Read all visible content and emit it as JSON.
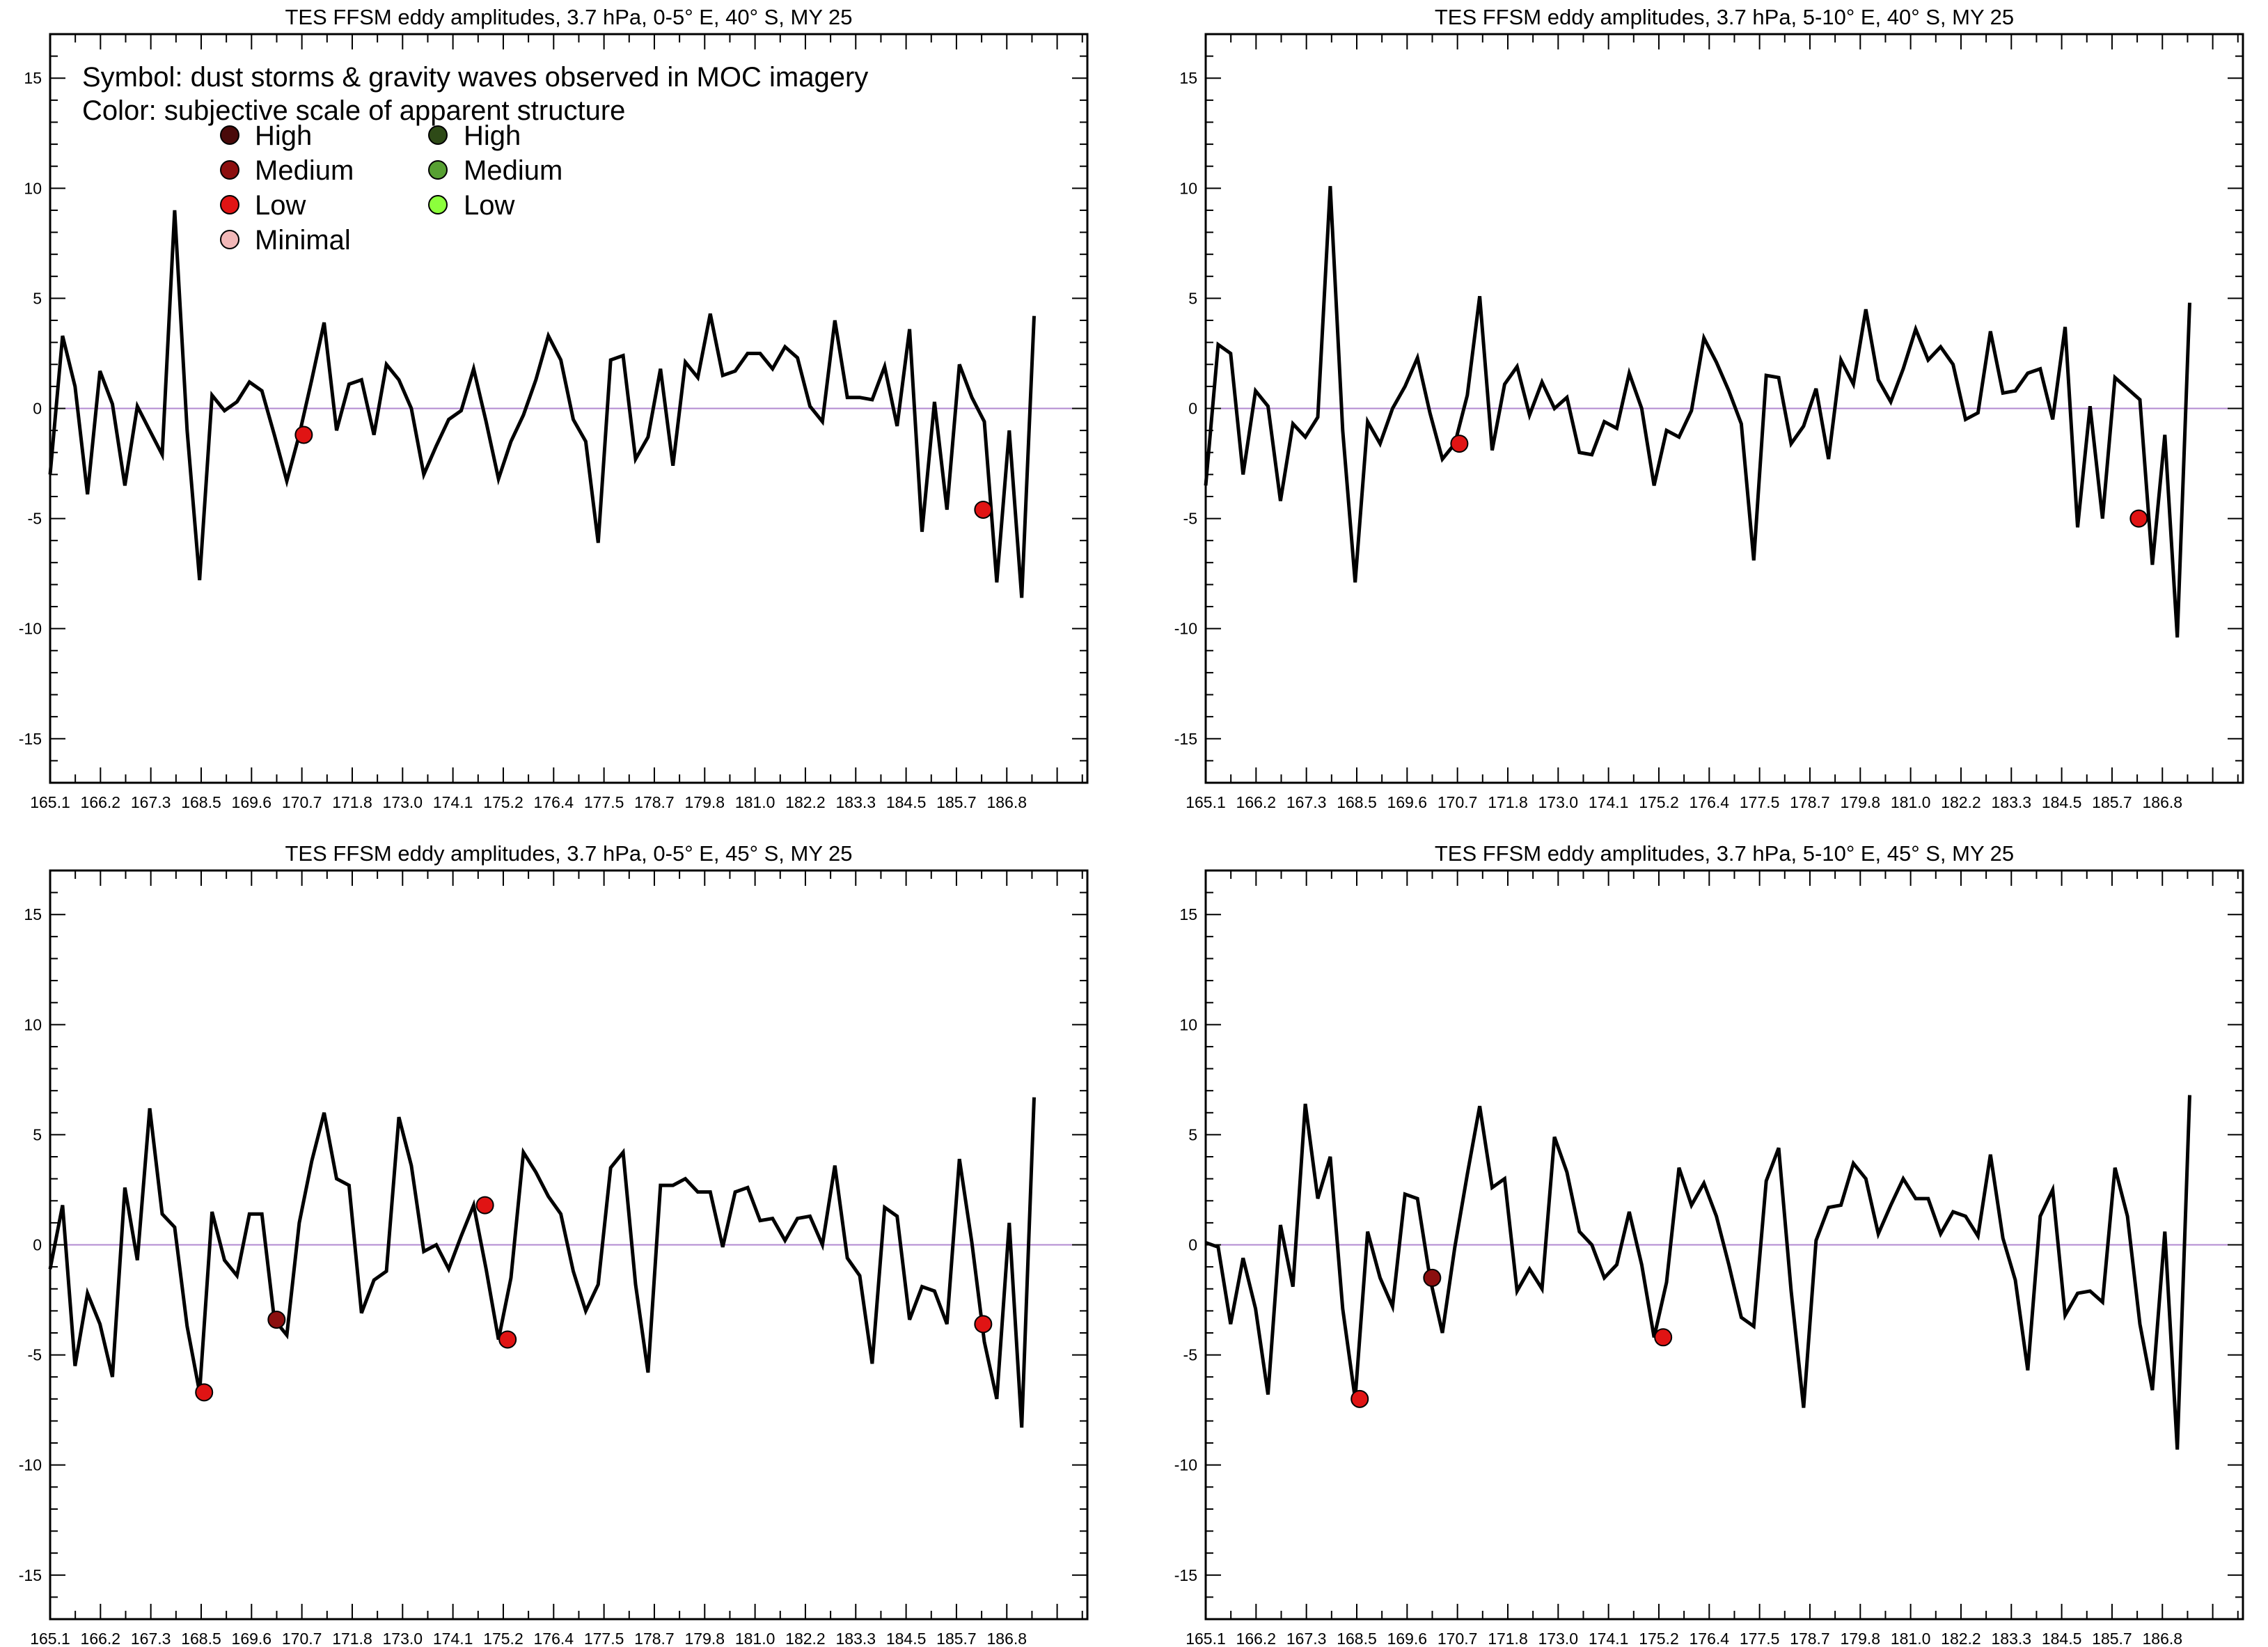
{
  "legend": {
    "line1": "Symbol: dust storms & gravity waves observed in MOC imagery",
    "line2": "Color: subjective scale of apparent structure",
    "dust_storms": [
      {
        "label": "High",
        "color": "#4a0a0a"
      },
      {
        "label": "Medium",
        "color": "#8c0f0f"
      },
      {
        "label": "Low",
        "color": "#e01414"
      },
      {
        "label": "Minimal",
        "color": "#f2b8b8"
      }
    ],
    "gravity_waves": [
      {
        "label": "High",
        "color": "#2e4a17"
      },
      {
        "label": "Medium",
        "color": "#57a032"
      },
      {
        "label": "Low",
        "color": "#8cff3c"
      }
    ]
  },
  "chart_data": [
    {
      "type": "line",
      "title": "TES FFSM eddy amplitudes, 3.7 hPa, 0-5° E, 40° S, MY 25",
      "xlim": [
        165.1,
        188.0
      ],
      "ylim": [
        -17,
        17
      ],
      "x_tick_labels": [
        "165.1",
        "166.2",
        "167.3",
        "168.5",
        "169.6",
        "170.7",
        "171.8",
        "173.0",
        "174.1",
        "175.2",
        "176.4",
        "177.5",
        "178.7",
        "179.8",
        "181.0",
        "182.2",
        "183.3",
        "184.5",
        "185.7",
        "186.8"
      ],
      "y_ticks": [
        -15,
        -10,
        -5,
        0,
        5,
        10,
        15
      ],
      "zero_line_color": "#b28ad0",
      "series": [
        {
          "x0": 165.1,
          "dx": 0.275,
          "values": [
            -3,
            3.3,
            1,
            -3.9,
            1.7,
            0.2,
            -3.5,
            0.1,
            -1,
            -2.1,
            9,
            -1,
            -7.8,
            0.6,
            -0.1,
            0.3,
            1.2,
            0.8,
            -1.2,
            -3.3,
            -1.2,
            1.3,
            3.9,
            -1,
            1.1,
            1.3,
            -1.2,
            2,
            1.3,
            0,
            -3,
            -1.7,
            -0.5,
            -0.1,
            1.8,
            -0.6,
            -3.2,
            -1.5,
            -0.3,
            1.3,
            3.3,
            2.2,
            -0.5,
            -1.5,
            -6.1,
            2.2,
            2.4,
            -2.3,
            -1.3,
            1.8,
            -2.6,
            2.1,
            1.4,
            4.3,
            1.5,
            1.7,
            2.5,
            2.5,
            1.8,
            2.8,
            2.3,
            0.1,
            -0.6,
            4,
            0.5,
            0.5,
            0.4,
            1.9,
            -0.8,
            3.6,
            -5.6,
            0.3,
            -4.6,
            2,
            0.5,
            -0.6,
            -7.9,
            -1,
            -8.6,
            4.2
          ]
        }
      ],
      "markers": [
        {
          "x": 170.7,
          "y": -1.2,
          "category": "Low"
        },
        {
          "x": 185.7,
          "y": -4.6,
          "category": "Low"
        }
      ]
    },
    {
      "type": "line",
      "title": "TES FFSM eddy amplitudes, 3.7 hPa, 5-10° E, 40° S, MY 25",
      "xlim": [
        165.1,
        188.0
      ],
      "ylim": [
        -17,
        17
      ],
      "x_tick_labels": [
        "165.1",
        "166.2",
        "167.3",
        "168.5",
        "169.6",
        "170.7",
        "171.8",
        "173.0",
        "174.1",
        "175.2",
        "176.4",
        "177.5",
        "178.7",
        "179.8",
        "181.0",
        "182.2",
        "183.3",
        "184.5",
        "185.7",
        "186.8"
      ],
      "y_ticks": [
        -15,
        -10,
        -5,
        0,
        5,
        10,
        15
      ],
      "zero_line_color": "#b28ad0",
      "series": [
        {
          "x0": 165.1,
          "dx": 0.275,
          "values": [
            -3.5,
            2.9,
            2.5,
            -3,
            0.8,
            0.1,
            -4.2,
            -0.7,
            -1.3,
            -0.4,
            10.1,
            -1,
            -7.9,
            -0.6,
            -1.6,
            0,
            1,
            2.3,
            -0.2,
            -2.3,
            -1.6,
            0.6,
            5.1,
            -1.9,
            1.1,
            1.9,
            -0.3,
            1.2,
            0,
            0.5,
            -2,
            -2.1,
            -0.6,
            -0.9,
            1.6,
            0,
            -3.5,
            -1,
            -1.3,
            -0.1,
            3.2,
            2.1,
            0.8,
            -0.7,
            -6.9,
            1.5,
            1.4,
            -1.6,
            -0.8,
            0.9,
            -2.3,
            2.2,
            1.1,
            4.5,
            1.3,
            0.3,
            1.8,
            3.6,
            2.2,
            2.8,
            2,
            -0.5,
            -0.2,
            3.5,
            0.7,
            0.8,
            1.6,
            1.8,
            -0.5,
            3.7,
            -5.4,
            0.1,
            -5,
            1.4,
            0.9,
            0.4,
            -7.1,
            -1.2,
            -10.4,
            4.8
          ]
        }
      ],
      "markers": [
        {
          "x": 170.7,
          "y": -1.6,
          "category": "Low"
        },
        {
          "x": 185.7,
          "y": -5,
          "category": "Low"
        }
      ]
    },
    {
      "type": "line",
      "title": "TES FFSM eddy amplitudes, 3.7 hPa, 0-5° E, 45° S, MY 25",
      "xlim": [
        165.1,
        188.0
      ],
      "ylim": [
        -17,
        17
      ],
      "x_tick_labels": [
        "165.1",
        "166.2",
        "167.3",
        "168.5",
        "169.6",
        "170.7",
        "171.8",
        "173.0",
        "174.1",
        "175.2",
        "176.4",
        "177.5",
        "178.7",
        "179.8",
        "181.0",
        "182.2",
        "183.3",
        "184.5",
        "185.7",
        "186.8"
      ],
      "y_ticks": [
        -15,
        -10,
        -5,
        0,
        5,
        10,
        15
      ],
      "zero_line_color": "#b28ad0",
      "series": [
        {
          "x0": 165.1,
          "dx": 0.275,
          "values": [
            -1.1,
            1.8,
            -5.5,
            -2.2,
            -3.6,
            -6,
            2.6,
            -0.7,
            6.2,
            1.4,
            0.8,
            -3.7,
            -6.7,
            1.5,
            -0.7,
            -1.4,
            1.4,
            1.4,
            -3.4,
            -4.1,
            1,
            3.8,
            6,
            3,
            2.7,
            -3.1,
            -1.6,
            -1.2,
            5.8,
            3.6,
            -0.3,
            0,
            -1.1,
            0.4,
            1.8,
            -1.1,
            -4.3,
            -1.5,
            4.2,
            3.3,
            2.2,
            1.4,
            -1.2,
            -3,
            -1.8,
            3.5,
            4.2,
            -1.8,
            -5.8,
            2.7,
            2.7,
            3,
            2.4,
            2.4,
            -0.1,
            2.4,
            2.6,
            1.1,
            1.2,
            0.2,
            1.2,
            1.3,
            0,
            3.6,
            -0.6,
            -1.4,
            -5.4,
            1.7,
            1.3,
            -3.4,
            -1.9,
            -2.1,
            -3.6,
            3.9,
            0.1,
            -4.4,
            -7,
            1,
            -8.3,
            6.7
          ]
        }
      ],
      "markers": [
        {
          "x": 168.5,
          "y": -6.7,
          "category": "Low"
        },
        {
          "x": 170.1,
          "y": -3.4,
          "category": "Medium"
        },
        {
          "x": 174.7,
          "y": 1.8,
          "category": "Low"
        },
        {
          "x": 175.2,
          "y": -4.3,
          "category": "Low"
        },
        {
          "x": 185.7,
          "y": -3.6,
          "category": "Low"
        }
      ]
    },
    {
      "type": "line",
      "title": "TES FFSM eddy amplitudes, 3.7 hPa, 5-10° E, 45° S, MY 25",
      "xlim": [
        165.1,
        188.0
      ],
      "ylim": [
        -17,
        17
      ],
      "x_tick_labels": [
        "165.1",
        "166.2",
        "167.3",
        "168.5",
        "169.6",
        "170.7",
        "171.8",
        "173.0",
        "174.1",
        "175.2",
        "176.4",
        "177.5",
        "178.7",
        "179.8",
        "181.0",
        "182.2",
        "183.3",
        "184.5",
        "185.7",
        "186.8"
      ],
      "y_ticks": [
        -15,
        -10,
        -5,
        0,
        5,
        10,
        15
      ],
      "zero_line_color": "#b28ad0",
      "series": [
        {
          "x0": 165.1,
          "dx": 0.275,
          "values": [
            0.1,
            -0.1,
            -3.6,
            -0.6,
            -2.9,
            -6.8,
            0.9,
            -1.9,
            6.4,
            2.1,
            4,
            -2.9,
            -7,
            0.6,
            -1.5,
            -2.8,
            2.3,
            2.1,
            -1.5,
            -4,
            -0.1,
            3.2,
            6.3,
            2.6,
            3,
            -2.1,
            -1.1,
            -2,
            4.9,
            3.3,
            0.6,
            0,
            -1.5,
            -0.9,
            1.5,
            -0.9,
            -4.2,
            -1.7,
            3.5,
            1.8,
            2.8,
            1.3,
            -0.9,
            -3.3,
            -3.7,
            2.9,
            4.4,
            -2.1,
            -7.4,
            0.2,
            1.7,
            1.8,
            3.7,
            3,
            0.5,
            1.8,
            3,
            2.1,
            2.1,
            0.5,
            1.5,
            1.3,
            0.4,
            4.1,
            0.3,
            -1.6,
            -5.7,
            1.3,
            2.5,
            -3.2,
            -2.2,
            -2.1,
            -2.6,
            3.5,
            1.3,
            -3.6,
            -6.6,
            0.6,
            -9.3,
            6.8
          ]
        }
      ],
      "markers": [
        {
          "x": 168.5,
          "y": -7,
          "category": "Low"
        },
        {
          "x": 170.1,
          "y": -1.5,
          "category": "Medium"
        },
        {
          "x": 175.2,
          "y": -4.2,
          "category": "Low"
        }
      ]
    }
  ]
}
